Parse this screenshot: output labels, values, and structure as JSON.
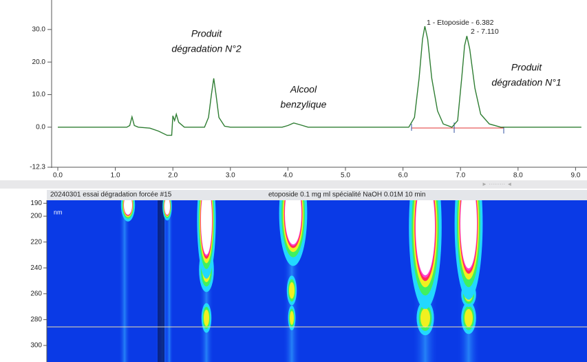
{
  "chart_data": [
    {
      "type": "line",
      "color": "#2e7d32",
      "x": [
        0,
        1.2,
        1.25,
        1.29,
        1.33,
        1.4,
        1.6,
        1.75,
        1.9,
        1.98,
        2.0,
        2.03,
        2.06,
        2.1,
        2.2,
        2.55,
        2.62,
        2.67,
        2.71,
        2.75,
        2.8,
        2.9,
        3.0,
        3.9,
        4.0,
        4.1,
        4.2,
        4.35,
        6.1,
        6.2,
        6.28,
        6.34,
        6.38,
        6.43,
        6.5,
        6.6,
        6.7,
        6.85,
        6.95,
        7.02,
        7.07,
        7.11,
        7.16,
        7.25,
        7.35,
        7.5,
        7.7,
        9.1
      ],
      "values": [
        0,
        0,
        0.5,
        3.2,
        0.5,
        0,
        -0.3,
        -1.2,
        -2.5,
        -2.5,
        3.5,
        2.0,
        4.0,
        1.5,
        0,
        0,
        3,
        10,
        15,
        10,
        3,
        0.3,
        0,
        0,
        0.5,
        1.3,
        0.8,
        0,
        0,
        3,
        15,
        27,
        31,
        27,
        15,
        5,
        1,
        0,
        2,
        15,
        25,
        28,
        24,
        12,
        4,
        1,
        0,
        0
      ],
      "xlim": [
        0,
        9.1
      ],
      "ylim": [
        -12.3,
        38
      ],
      "xticks": [
        {
          "value": 0,
          "label": "0.0"
        },
        {
          "value": 1,
          "label": "1.0"
        },
        {
          "value": 2,
          "label": "2.0"
        },
        {
          "value": 3,
          "label": "3.0"
        },
        {
          "value": 4,
          "label": "4.0"
        },
        {
          "value": 5,
          "label": "5.0"
        },
        {
          "value": 6,
          "label": "6.0"
        },
        {
          "value": 7,
          "label": "7.0"
        },
        {
          "value": 8,
          "label": "8.0"
        },
        {
          "value": 9,
          "label": "9.0"
        }
      ],
      "yticks": [
        {
          "value": -12.3,
          "label": "-12.3"
        },
        {
          "value": 0,
          "label": "0.0"
        },
        {
          "value": 10,
          "label": "10.0"
        },
        {
          "value": 20,
          "label": "20.0"
        },
        {
          "value": 30,
          "label": "30.0"
        }
      ],
      "peak_labels": [
        "1 - Etoposide - 6.382",
        "2 - 7.110"
      ],
      "annotations": [
        [
          "Produit",
          "dégradation N°2"
        ],
        [
          "Alcool",
          "benzylique"
        ],
        [
          "Produit",
          "dégradation N°1"
        ]
      ]
    },
    {
      "type": "contour",
      "title": "20240301 essai dégradation forcée #15",
      "subtitle": "etoposide 0.1 mg ml spécialité NaOH 0.01M 10 min",
      "ylabel": "nm",
      "ylim": [
        187.7,
        312.8
      ],
      "yticks": [
        190,
        200,
        220,
        240,
        260,
        280,
        300
      ]
    }
  ]
}
